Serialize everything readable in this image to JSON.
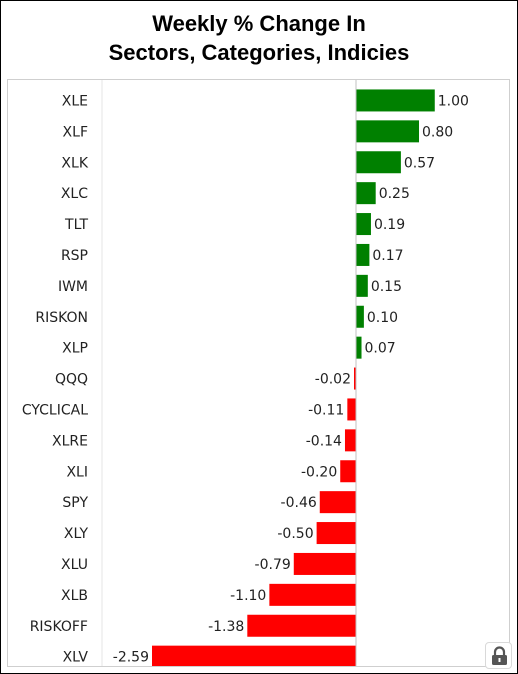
{
  "chart_data": {
    "type": "bar",
    "orientation": "horizontal",
    "title_line1": "Weekly % Change In",
    "title_line2": "Sectors, Categories, Indicies",
    "categories": [
      "XLE",
      "XLF",
      "XLK",
      "XLC",
      "TLT",
      "RSP",
      "IWM",
      "RISKON",
      "XLP",
      "QQQ",
      "CYCLICAL",
      "XLRE",
      "XLI",
      "SPY",
      "XLY",
      "XLU",
      "XLB",
      "RISKOFF",
      "XLV"
    ],
    "values": [
      1.0,
      0.8,
      0.57,
      0.25,
      0.19,
      0.17,
      0.15,
      0.1,
      0.07,
      -0.02,
      -0.11,
      -0.14,
      -0.2,
      -0.46,
      -0.5,
      -0.79,
      -1.1,
      -1.38,
      -2.59
    ],
    "value_labels": [
      "1.00",
      "0.80",
      "0.57",
      "0.25",
      "0.19",
      "0.17",
      "0.15",
      "0.10",
      "0.07",
      "-0.02",
      "-0.11",
      "-0.14",
      "-0.20",
      "-0.46",
      "-0.50",
      "-0.79",
      "-1.10",
      "-1.38",
      "-2.59"
    ],
    "xlim": [
      -2.59,
      1.0
    ],
    "grid": false,
    "legend": "none",
    "colors": {
      "positive": "#008000",
      "negative": "#ff0000",
      "zero_line": "#c0c0c0"
    }
  },
  "ui": {
    "lock_icon": "lock-icon"
  }
}
